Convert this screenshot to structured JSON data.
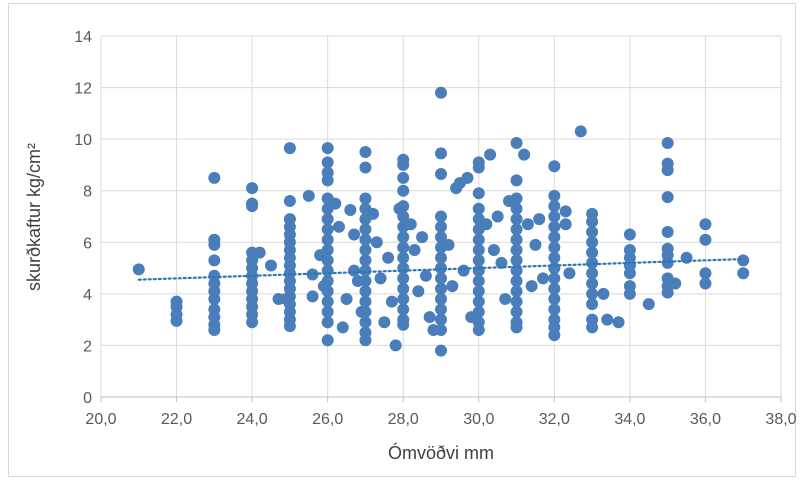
{
  "chart_data": {
    "type": "scatter",
    "title": "",
    "xlabel": "Ómvöðvi mm",
    "ylabel": "skurðkaftur kg/cm²",
    "xlim": [
      20,
      38
    ],
    "ylim": [
      0,
      14
    ],
    "x_ticks": [
      "20,0",
      "22,0",
      "24,0",
      "26,0",
      "28,0",
      "30,0",
      "32,0",
      "34,0",
      "36,0",
      "38,0"
    ],
    "y_ticks": [
      "0",
      "2",
      "4",
      "6",
      "8",
      "10",
      "12",
      "14"
    ],
    "grid": true,
    "legend": "none",
    "marker_color": "#4a7ebb",
    "trendline": {
      "type": "linear",
      "style": "dotted",
      "color": "#2e75b6",
      "x": [
        21,
        37
      ],
      "y": [
        4.55,
        5.35
      ]
    },
    "series": [
      {
        "points": [
          [
            21,
            4.95
          ],
          [
            22,
            3.7
          ],
          [
            22,
            3.5
          ],
          [
            22,
            3.2
          ],
          [
            22,
            2.95
          ],
          [
            23,
            8.5
          ],
          [
            23,
            6.1
          ],
          [
            23,
            5.9
          ],
          [
            23,
            5.3
          ],
          [
            23,
            4.7
          ],
          [
            23,
            4.4
          ],
          [
            23,
            4.1
          ],
          [
            23,
            3.8
          ],
          [
            23,
            3.4
          ],
          [
            23,
            3.1
          ],
          [
            23,
            2.8
          ],
          [
            23,
            2.6
          ],
          [
            24,
            8.1
          ],
          [
            24,
            7.5
          ],
          [
            24,
            7.4
          ],
          [
            24,
            5.6
          ],
          [
            24,
            5.3
          ],
          [
            24,
            5.0
          ],
          [
            24,
            4.7
          ],
          [
            24,
            4.4
          ],
          [
            24,
            4.1
          ],
          [
            24,
            3.8
          ],
          [
            24,
            3.5
          ],
          [
            24,
            3.2
          ],
          [
            24,
            2.9
          ],
          [
            24.2,
            5.6
          ],
          [
            24.5,
            5.1
          ],
          [
            24.7,
            3.8
          ],
          [
            24.9,
            3.8
          ],
          [
            25,
            9.65
          ],
          [
            25,
            7.6
          ],
          [
            25,
            6.9
          ],
          [
            25,
            6.6
          ],
          [
            25,
            6.3
          ],
          [
            25,
            6.0
          ],
          [
            25,
            5.7
          ],
          [
            25,
            5.4
          ],
          [
            25,
            5.1
          ],
          [
            25,
            4.8
          ],
          [
            25,
            4.5
          ],
          [
            25,
            4.2
          ],
          [
            25,
            3.9
          ],
          [
            25,
            3.6
          ],
          [
            25,
            3.3
          ],
          [
            25,
            3.0
          ],
          [
            25,
            2.75
          ],
          [
            25.5,
            7.8
          ],
          [
            25.6,
            4.75
          ],
          [
            25.6,
            3.9
          ],
          [
            25.8,
            5.5
          ],
          [
            25.9,
            4.3
          ],
          [
            26,
            9.65
          ],
          [
            26,
            9.1
          ],
          [
            26,
            8.7
          ],
          [
            26,
            8.4
          ],
          [
            26,
            7.7
          ],
          [
            26,
            7.3
          ],
          [
            26,
            6.9
          ],
          [
            26,
            6.5
          ],
          [
            26,
            6.1
          ],
          [
            26,
            5.7
          ],
          [
            26,
            5.3
          ],
          [
            26,
            4.9
          ],
          [
            26,
            4.5
          ],
          [
            26,
            4.1
          ],
          [
            26,
            3.7
          ],
          [
            26,
            3.3
          ],
          [
            26,
            2.9
          ],
          [
            26,
            2.2
          ],
          [
            26.2,
            7.5
          ],
          [
            26.3,
            6.6
          ],
          [
            26.4,
            2.7
          ],
          [
            26.5,
            3.8
          ],
          [
            26.6,
            7.25
          ],
          [
            26.7,
            6.3
          ],
          [
            26.7,
            4.9
          ],
          [
            26.8,
            4.5
          ],
          [
            26.9,
            3.3
          ],
          [
            27,
            9.5
          ],
          [
            27,
            8.9
          ],
          [
            27,
            7.7
          ],
          [
            27,
            7.3
          ],
          [
            27,
            6.9
          ],
          [
            27,
            6.5
          ],
          [
            27,
            6.1
          ],
          [
            27,
            5.7
          ],
          [
            27,
            5.3
          ],
          [
            27,
            4.9
          ],
          [
            27,
            4.5
          ],
          [
            27,
            4.1
          ],
          [
            27,
            3.7
          ],
          [
            27,
            3.3
          ],
          [
            27,
            2.9
          ],
          [
            27,
            2.5
          ],
          [
            27,
            2.2
          ],
          [
            27.2,
            7.1
          ],
          [
            27.3,
            6.0
          ],
          [
            27.4,
            4.6
          ],
          [
            27.5,
            2.9
          ],
          [
            27.6,
            5.4
          ],
          [
            27.7,
            3.7
          ],
          [
            27.8,
            2.0
          ],
          [
            27.9,
            7.3
          ],
          [
            28,
            9.2
          ],
          [
            28,
            9.0
          ],
          [
            28,
            8.5
          ],
          [
            28,
            8.0
          ],
          [
            28,
            7.4
          ],
          [
            28,
            7.0
          ],
          [
            28,
            6.6
          ],
          [
            28,
            6.2
          ],
          [
            28,
            5.8
          ],
          [
            28,
            5.4
          ],
          [
            28,
            5.0
          ],
          [
            28,
            4.6
          ],
          [
            28,
            4.2
          ],
          [
            28,
            3.8
          ],
          [
            28,
            3.4
          ],
          [
            28,
            3.0
          ],
          [
            28,
            2.8
          ],
          [
            28.2,
            6.7
          ],
          [
            28.3,
            5.7
          ],
          [
            28.4,
            4.1
          ],
          [
            28.5,
            6.2
          ],
          [
            28.6,
            4.7
          ],
          [
            28.7,
            3.1
          ],
          [
            28.8,
            2.6
          ],
          [
            29,
            11.8
          ],
          [
            29,
            9.45
          ],
          [
            29,
            8.65
          ],
          [
            29,
            7.0
          ],
          [
            29,
            6.6
          ],
          [
            29,
            6.2
          ],
          [
            29,
            5.8
          ],
          [
            29,
            5.4
          ],
          [
            29,
            5.0
          ],
          [
            29,
            4.6
          ],
          [
            29,
            4.2
          ],
          [
            29,
            3.8
          ],
          [
            29,
            3.4
          ],
          [
            29,
            3.0
          ],
          [
            29,
            2.6
          ],
          [
            29,
            1.8
          ],
          [
            29.2,
            5.9
          ],
          [
            29.3,
            4.3
          ],
          [
            29.4,
            8.1
          ],
          [
            29.5,
            8.3
          ],
          [
            29.6,
            4.9
          ],
          [
            29.7,
            8.5
          ],
          [
            29.8,
            3.1
          ],
          [
            30,
            9.1
          ],
          [
            30,
            8.9
          ],
          [
            30,
            7.9
          ],
          [
            30,
            7.3
          ],
          [
            30,
            6.9
          ],
          [
            30,
            6.5
          ],
          [
            30,
            6.1
          ],
          [
            30,
            5.7
          ],
          [
            30,
            5.3
          ],
          [
            30,
            4.9
          ],
          [
            30,
            4.5
          ],
          [
            30,
            4.1
          ],
          [
            30,
            3.7
          ],
          [
            30,
            3.3
          ],
          [
            30,
            2.9
          ],
          [
            30,
            2.6
          ],
          [
            30.2,
            6.7
          ],
          [
            30.3,
            9.4
          ],
          [
            30.4,
            5.7
          ],
          [
            30.5,
            7.0
          ],
          [
            30.6,
            5.2
          ],
          [
            30.7,
            3.8
          ],
          [
            30.8,
            7.6
          ],
          [
            31,
            9.85
          ],
          [
            31,
            8.4
          ],
          [
            31,
            7.7
          ],
          [
            31,
            7.3
          ],
          [
            31,
            6.9
          ],
          [
            31,
            6.5
          ],
          [
            31,
            6.1
          ],
          [
            31,
            5.7
          ],
          [
            31,
            5.3
          ],
          [
            31,
            4.9
          ],
          [
            31,
            4.5
          ],
          [
            31,
            4.1
          ],
          [
            31,
            3.7
          ],
          [
            31,
            3.3
          ],
          [
            31,
            2.9
          ],
          [
            31,
            2.7
          ],
          [
            31.2,
            9.4
          ],
          [
            31.3,
            6.7
          ],
          [
            31.4,
            4.3
          ],
          [
            31.5,
            5.9
          ],
          [
            31.6,
            6.9
          ],
          [
            31.7,
            4.6
          ],
          [
            32,
            8.95
          ],
          [
            32,
            7.8
          ],
          [
            32,
            7.4
          ],
          [
            32,
            7.0
          ],
          [
            32,
            6.6
          ],
          [
            32,
            6.2
          ],
          [
            32,
            5.8
          ],
          [
            32,
            5.4
          ],
          [
            32,
            5.0
          ],
          [
            32,
            4.6
          ],
          [
            32,
            4.2
          ],
          [
            32,
            3.8
          ],
          [
            32,
            3.4
          ],
          [
            32,
            3.0
          ],
          [
            32,
            2.7
          ],
          [
            32,
            2.4
          ],
          [
            32.3,
            7.2
          ],
          [
            32.3,
            6.7
          ],
          [
            32.4,
            4.8
          ],
          [
            32.7,
            10.3
          ],
          [
            33,
            7.1
          ],
          [
            33,
            6.8
          ],
          [
            33,
            6.4
          ],
          [
            33,
            6.0
          ],
          [
            33,
            5.6
          ],
          [
            33,
            5.2
          ],
          [
            33,
            4.8
          ],
          [
            33,
            4.4
          ],
          [
            33,
            4.0
          ],
          [
            33,
            3.6
          ],
          [
            33,
            3.0
          ],
          [
            33,
            2.7
          ],
          [
            33.3,
            4.0
          ],
          [
            33.4,
            3.0
          ],
          [
            33.7,
            2.9
          ],
          [
            34,
            6.3
          ],
          [
            34,
            5.7
          ],
          [
            34,
            5.4
          ],
          [
            34,
            5.1
          ],
          [
            34,
            4.8
          ],
          [
            34,
            4.3
          ],
          [
            34,
            4.0
          ],
          [
            34.5,
            3.6
          ],
          [
            35,
            9.85
          ],
          [
            35,
            9.05
          ],
          [
            35,
            8.8
          ],
          [
            35,
            7.75
          ],
          [
            35,
            6.4
          ],
          [
            35,
            5.75
          ],
          [
            35,
            5.5
          ],
          [
            35,
            5.2
          ],
          [
            35,
            4.6
          ],
          [
            35,
            4.3
          ],
          [
            35,
            4.05
          ],
          [
            35.2,
            4.4
          ],
          [
            35.5,
            5.4
          ],
          [
            36,
            6.7
          ],
          [
            36,
            6.1
          ],
          [
            36,
            4.8
          ],
          [
            36,
            4.4
          ],
          [
            37,
            5.3
          ],
          [
            37,
            4.8
          ]
        ]
      }
    ]
  }
}
